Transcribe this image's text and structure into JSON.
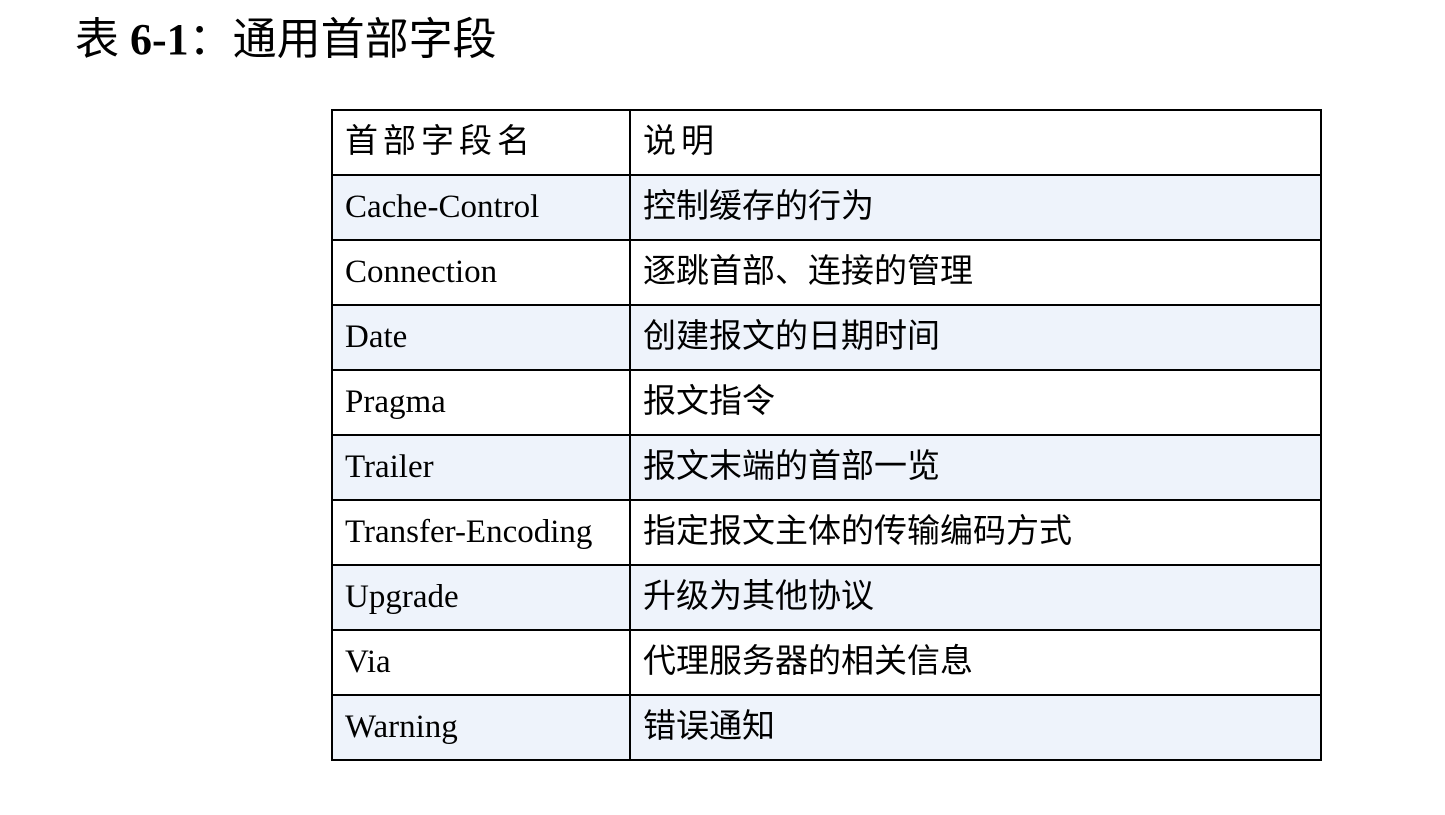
{
  "title": {
    "prefix": "表 ",
    "number": "6-1",
    "suffix": "：通用首部字段"
  },
  "table": {
    "headers": [
      "首部字段名",
      "说明"
    ],
    "rows": [
      [
        "Cache-Control",
        "控制缓存的行为"
      ],
      [
        "Connection",
        "逐跳首部、连接的管理"
      ],
      [
        "Date",
        "创建报文的日期时间"
      ],
      [
        "Pragma",
        "报文指令"
      ],
      [
        "Trailer",
        "报文末端的首部一览"
      ],
      [
        "Transfer-Encoding",
        "指定报文主体的传输编码方式"
      ],
      [
        "Upgrade",
        "升级为其他协议"
      ],
      [
        "Via",
        "代理服务器的相关信息"
      ],
      [
        "Warning",
        "错误通知"
      ]
    ],
    "alt_row_color": "#eef3fb"
  }
}
